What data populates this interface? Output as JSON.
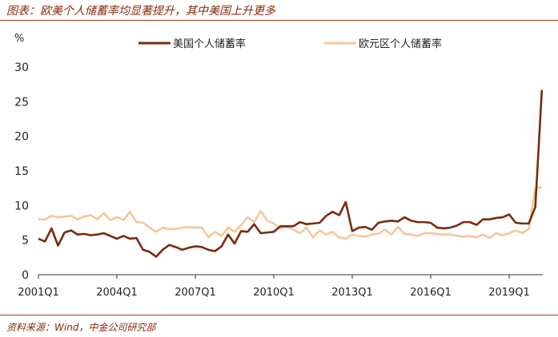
{
  "page": {
    "title": "图表：欧美个人储蓄率均显著提升，其中美国上升更多",
    "source": "资料来源：Wind，中金公司研究部"
  },
  "colors": {
    "us": "#7a2a10",
    "eu": "#f4c79c",
    "accent": "#8b2a0c"
  },
  "chart_data": {
    "type": "line",
    "ylabel": "%",
    "xlabel": "",
    "ylim": [
      0,
      30
    ],
    "yticks": [
      0,
      5,
      10,
      15,
      20,
      25,
      30
    ],
    "xticks": [
      "2001Q1",
      "2004Q1",
      "2007Q1",
      "2010Q1",
      "2013Q1",
      "2016Q1",
      "2019Q1"
    ],
    "grid": false,
    "legend": "top",
    "x": [
      "2001Q1",
      "2001Q2",
      "2001Q3",
      "2001Q4",
      "2002Q1",
      "2002Q2",
      "2002Q3",
      "2002Q4",
      "2003Q1",
      "2003Q2",
      "2003Q3",
      "2003Q4",
      "2004Q1",
      "2004Q2",
      "2004Q3",
      "2004Q4",
      "2005Q1",
      "2005Q2",
      "2005Q3",
      "2005Q4",
      "2006Q1",
      "2006Q2",
      "2006Q3",
      "2006Q4",
      "2007Q1",
      "2007Q2",
      "2007Q3",
      "2007Q4",
      "2008Q1",
      "2008Q2",
      "2008Q3",
      "2008Q4",
      "2009Q1",
      "2009Q2",
      "2009Q3",
      "2009Q4",
      "2010Q1",
      "2010Q2",
      "2010Q3",
      "2010Q4",
      "2011Q1",
      "2011Q2",
      "2011Q3",
      "2011Q4",
      "2012Q1",
      "2012Q2",
      "2012Q3",
      "2012Q4",
      "2013Q1",
      "2013Q2",
      "2013Q3",
      "2013Q4",
      "2014Q1",
      "2014Q2",
      "2014Q3",
      "2014Q4",
      "2015Q1",
      "2015Q2",
      "2015Q3",
      "2015Q4",
      "2016Q1",
      "2016Q2",
      "2016Q3",
      "2016Q4",
      "2017Q1",
      "2017Q2",
      "2017Q3",
      "2017Q4",
      "2018Q1",
      "2018Q2",
      "2018Q3",
      "2018Q4",
      "2019Q1",
      "2019Q2",
      "2019Q3",
      "2019Q4",
      "2020Q1",
      "2020Q2"
    ],
    "series": [
      {
        "name": "美国个人储蓄率",
        "values": [
          5.2,
          4.8,
          6.7,
          4.2,
          6.1,
          6.4,
          5.8,
          5.9,
          5.7,
          5.8,
          6.0,
          5.6,
          5.2,
          5.6,
          5.2,
          5.3,
          3.6,
          3.3,
          2.6,
          3.6,
          4.3,
          4.0,
          3.6,
          3.9,
          4.1,
          4.0,
          3.6,
          3.4,
          4.1,
          5.8,
          4.5,
          6.3,
          6.2,
          7.3,
          6.0,
          6.1,
          6.2,
          7.0,
          7.0,
          7.0,
          7.6,
          7.3,
          7.4,
          7.5,
          8.5,
          9.1,
          8.6,
          10.5,
          6.3,
          6.8,
          6.9,
          6.5,
          7.5,
          7.7,
          7.8,
          7.7,
          8.3,
          7.8,
          7.6,
          7.6,
          7.5,
          6.8,
          6.7,
          6.8,
          7.1,
          7.6,
          7.6,
          7.2,
          8.0,
          8.0,
          8.2,
          8.3,
          8.7,
          7.5,
          7.4,
          7.4,
          9.8,
          26.7
        ]
      },
      {
        "name": "欧元区个人储蓄率",
        "values": [
          8.0,
          8.0,
          8.5,
          8.3,
          8.4,
          8.5,
          8.0,
          8.4,
          8.6,
          8.0,
          8.9,
          7.9,
          8.3,
          7.9,
          9.1,
          7.6,
          7.5,
          6.8,
          6.2,
          6.8,
          6.6,
          6.6,
          6.8,
          6.9,
          6.8,
          6.8,
          5.4,
          6.2,
          5.6,
          6.8,
          6.2,
          7.2,
          8.3,
          7.6,
          9.2,
          7.8,
          7.4,
          6.7,
          6.9,
          6.5,
          6.0,
          6.8,
          5.4,
          6.4,
          5.8,
          6.2,
          5.4,
          5.2,
          5.8,
          5.6,
          5.5,
          5.8,
          5.9,
          6.5,
          5.8,
          6.9,
          5.9,
          5.8,
          5.6,
          6.0,
          6.0,
          5.9,
          5.8,
          5.8,
          5.6,
          5.5,
          5.6,
          5.4,
          5.8,
          5.3,
          6.0,
          5.7,
          6.0,
          6.4,
          6.0,
          6.6,
          12.5,
          12.6
        ]
      }
    ]
  }
}
